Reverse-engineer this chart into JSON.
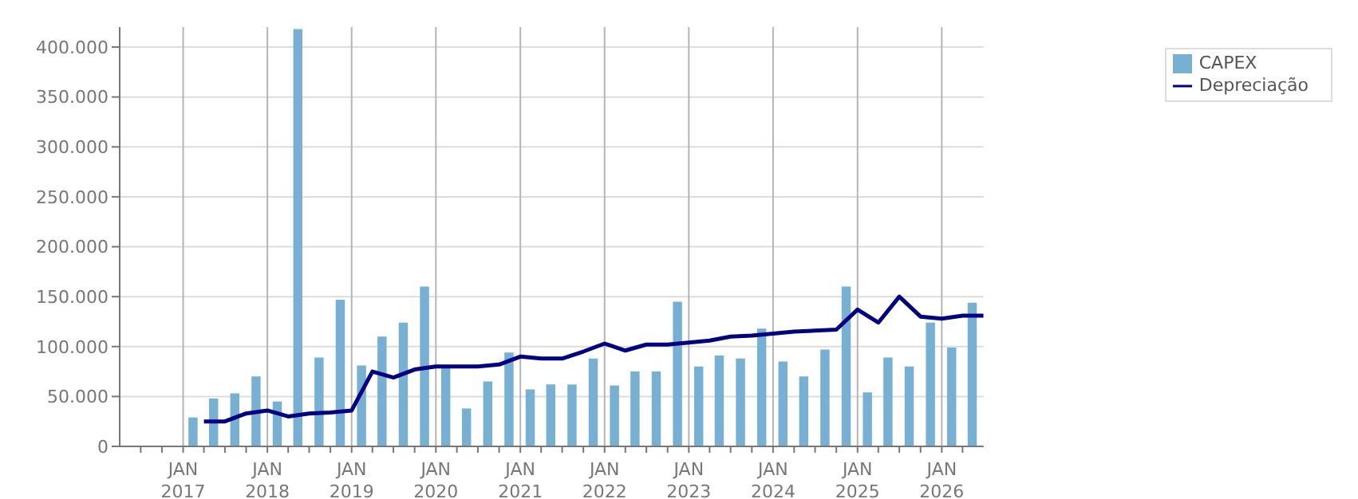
{
  "chart_data": {
    "type": "bar",
    "xlim": [
      "2016-04",
      "2026-07"
    ],
    "xticks": [
      {
        "value": "2016-07",
        "label": null
      },
      {
        "value": "2016-10",
        "label": null
      },
      {
        "value": "2017-01",
        "label": "JAN\n2017"
      },
      {
        "value": "2017-04",
        "label": null
      },
      {
        "value": "2017-07",
        "label": null
      },
      {
        "value": "2017-10",
        "label": null
      },
      {
        "value": "2018-01",
        "label": "JAN\n2018"
      },
      {
        "value": "2018-04",
        "label": null
      },
      {
        "value": "2018-07",
        "label": null
      },
      {
        "value": "2018-10",
        "label": null
      },
      {
        "value": "2019-01",
        "label": "JAN\n2019"
      },
      {
        "value": "2019-04",
        "label": null
      },
      {
        "value": "2019-07",
        "label": null
      },
      {
        "value": "2019-10",
        "label": null
      },
      {
        "value": "2020-01",
        "label": "JAN\n2020"
      },
      {
        "value": "2020-04",
        "label": null
      },
      {
        "value": "2020-07",
        "label": null
      },
      {
        "value": "2020-10",
        "label": null
      },
      {
        "value": "2021-01",
        "label": "JAN\n2021"
      },
      {
        "value": "2021-04",
        "label": null
      },
      {
        "value": "2021-07",
        "label": null
      },
      {
        "value": "2021-10",
        "label": null
      },
      {
        "value": "2022-01",
        "label": "JAN\n2022"
      },
      {
        "value": "2022-04",
        "label": null
      },
      {
        "value": "2022-07",
        "label": null
      },
      {
        "value": "2022-10",
        "label": null
      },
      {
        "value": "2023-01",
        "label": "JAN\n2023"
      },
      {
        "value": "2023-04",
        "label": null
      },
      {
        "value": "2023-07",
        "label": null
      },
      {
        "value": "2023-10",
        "label": null
      },
      {
        "value": "2024-01",
        "label": "JAN\n2024"
      },
      {
        "value": "2024-04",
        "label": null
      },
      {
        "value": "2024-07",
        "label": null
      },
      {
        "value": "2024-10",
        "label": null
      },
      {
        "value": "2025-01",
        "label": "JAN\n2025"
      },
      {
        "value": "2025-04",
        "label": null
      },
      {
        "value": "2025-07",
        "label": null
      },
      {
        "value": "2025-10",
        "label": null
      },
      {
        "value": "2026-01",
        "label": "JAN\n2026"
      },
      {
        "value": "2026-04",
        "label": null
      }
    ],
    "ylim": [
      0,
      420000
    ],
    "yticks": [
      0,
      {
        "value": 50000,
        "label": "50.000"
      },
      {
        "value": 100000,
        "label": "100.000"
      },
      {
        "value": 150000,
        "label": "150.000"
      },
      {
        "value": 200000,
        "label": "200.000"
      },
      {
        "value": 250000,
        "label": "250.000"
      },
      {
        "value": 300000,
        "label": "300.000"
      },
      {
        "value": 350000,
        "label": "350.000"
      },
      {
        "value": 400000,
        "label": "400.000"
      }
    ],
    "grid": true,
    "legend": "top right",
    "series": [
      {
        "name": "CAPEX",
        "color": "#77b0d3",
        "x": [
          "2017-02-15",
          "2017-05-15",
          "2017-08-15",
          "2017-11-15",
          "2018-02-15",
          "2018-05-15",
          "2018-08-15",
          "2018-11-15",
          "2019-02-15",
          "2019-05-15",
          "2019-08-15",
          "2019-11-15",
          "2020-02-15",
          "2020-05-15",
          "2020-08-15",
          "2020-11-15",
          "2021-02-15",
          "2021-05-15",
          "2021-08-15",
          "2021-11-15",
          "2022-02-15",
          "2022-05-15",
          "2022-08-15",
          "2022-11-15",
          "2023-02-15",
          "2023-05-15",
          "2023-08-15",
          "2023-11-15",
          "2024-02-15",
          "2024-05-15",
          "2024-08-15",
          "2024-11-15",
          "2025-02-15",
          "2025-05-15",
          "2025-08-15",
          "2025-11-15",
          "2026-02-15",
          "2026-05-15"
        ],
        "values": [
          29000,
          48000,
          53000,
          70000,
          45000,
          418000,
          89000,
          147000,
          81000,
          110000,
          124000,
          160000,
          80000,
          38000,
          65000,
          94000,
          57000,
          62000,
          62000,
          88000,
          61000,
          75000,
          75000,
          145000,
          80000,
          91000,
          88000,
          118000,
          85000,
          70000,
          97000,
          160000,
          54000,
          89000,
          80000,
          124000,
          99000,
          144000
        ]
      },
      {
        "name": "Depreciação",
        "type": "line",
        "color": "#000080",
        "x": [
          "2017-04",
          "2017-07",
          "2017-10",
          "2018-01",
          "2018-04",
          "2018-07",
          "2018-10",
          "2019-01",
          "2019-04",
          "2019-07",
          "2019-10",
          "2020-01",
          "2020-04",
          "2020-07",
          "2020-10",
          "2021-01",
          "2021-04",
          "2021-07",
          "2021-10",
          "2022-01",
          "2022-04",
          "2022-07",
          "2022-10",
          "2023-01",
          "2023-04",
          "2023-07",
          "2023-10",
          "2024-01",
          "2024-04",
          "2024-07",
          "2024-10",
          "2025-01",
          "2025-04",
          "2025-07",
          "2025-10",
          "2026-01",
          "2026-04",
          "2026-07"
        ],
        "values": [
          25000,
          25000,
          33000,
          36000,
          30000,
          33000,
          34000,
          36000,
          75000,
          69000,
          77000,
          80000,
          80000,
          80000,
          82000,
          90000,
          88000,
          88000,
          95000,
          103000,
          96000,
          102000,
          102000,
          104000,
          106000,
          110000,
          111000,
          113000,
          115000,
          116000,
          117000,
          137000,
          124000,
          150000,
          130000,
          128000,
          131000,
          131000
        ]
      }
    ]
  }
}
